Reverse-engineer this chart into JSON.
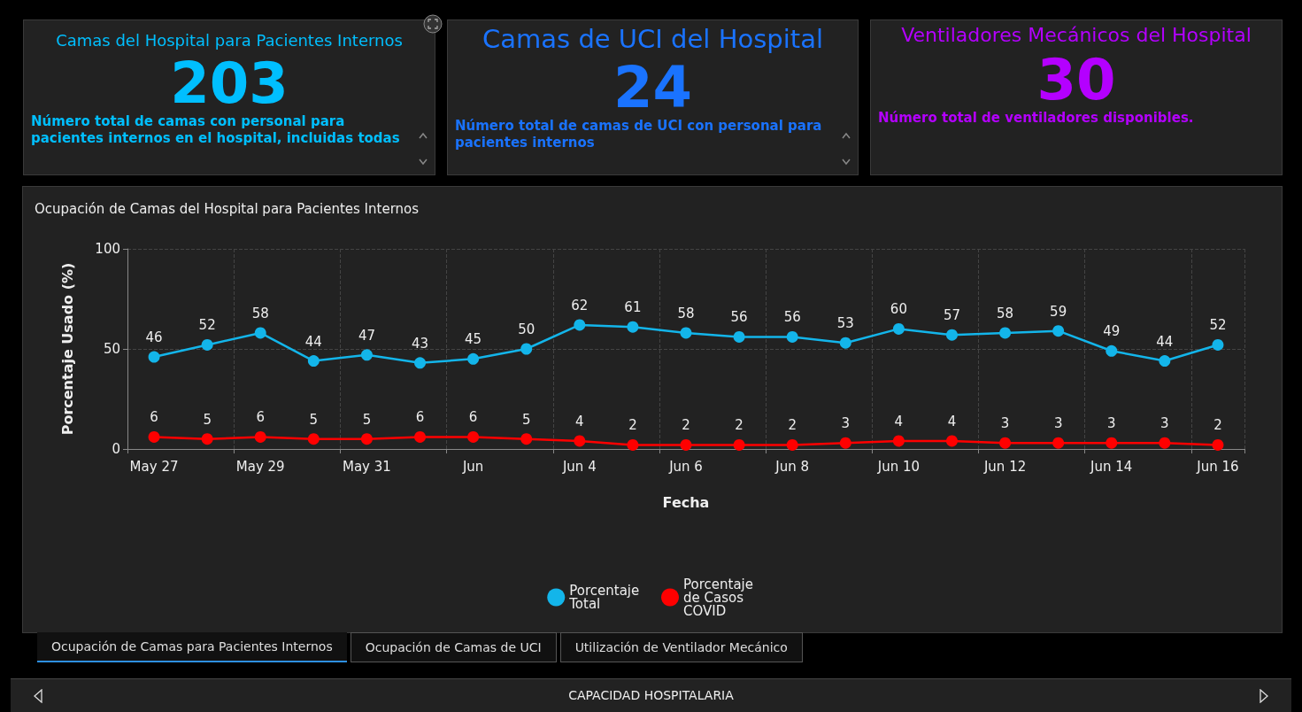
{
  "chart_data": [
    {
      "type": "other",
      "title": "Camas del Hospital para Pacientes Internos",
      "values": [
        203
      ],
      "data_labels": true,
      "annotations": [
        "Número total de camas con personal para pacientes internos en el hospital, incluidas todas"
      ]
    },
    {
      "type": "other",
      "title": "Camas de UCI del Hospital",
      "values": [
        24
      ],
      "data_labels": true,
      "annotations": [
        "Número total de camas de UCI con personal para pacientes internos"
      ]
    },
    {
      "type": "other",
      "title": "Ventiladores Mecánicos del Hospital",
      "values": [
        30
      ],
      "data_labels": true,
      "annotations": [
        "Número total de ventiladores disponibles."
      ]
    },
    {
      "type": "line",
      "title": "Ocupación de Camas del Hospital para Pacientes Internos",
      "xlabel": "Fecha",
      "ylabel": "Porcentaje Usado (%)",
      "categories": [
        "May 27",
        null,
        "May 29",
        null,
        "May 31",
        null,
        "Jun",
        null,
        "Jun 4",
        null,
        "Jun 6",
        null,
        "Jun 8",
        null,
        "Jun 10",
        null,
        "Jun 12",
        null,
        "Jun 14",
        null,
        "Jun 16"
      ],
      "series": [
        {
          "name": "Porcentaje Total",
          "color": "#13b5ea",
          "values": [
            46,
            52,
            58,
            44,
            47,
            43,
            45,
            50,
            62,
            61,
            58,
            56,
            56,
            53,
            60,
            57,
            58,
            59,
            49,
            44,
            52
          ]
        },
        {
          "name": "Porcentaje de Casos COVID",
          "color": "#ff0000",
          "values": [
            6,
            5,
            6,
            5,
            5,
            6,
            6,
            5,
            4,
            2,
            2,
            2,
            2,
            3,
            4,
            4,
            3,
            3,
            3,
            3,
            2
          ]
        }
      ],
      "ylim": [
        0,
        100
      ],
      "yticks": [
        0,
        50,
        100
      ],
      "grid": true,
      "legend": "bottom",
      "marker": "circle",
      "line_style": "solid",
      "data_labels": true
    },
    {
      "type": "other",
      "title": "CAPACIDAD HOSPITALARIA",
      "categories": [
        "Ocupación de Camas para Pacientes Internos",
        "Ocupación de Camas de UCI",
        "Utilización de Ventilador Mecánico"
      ]
    }
  ]
}
